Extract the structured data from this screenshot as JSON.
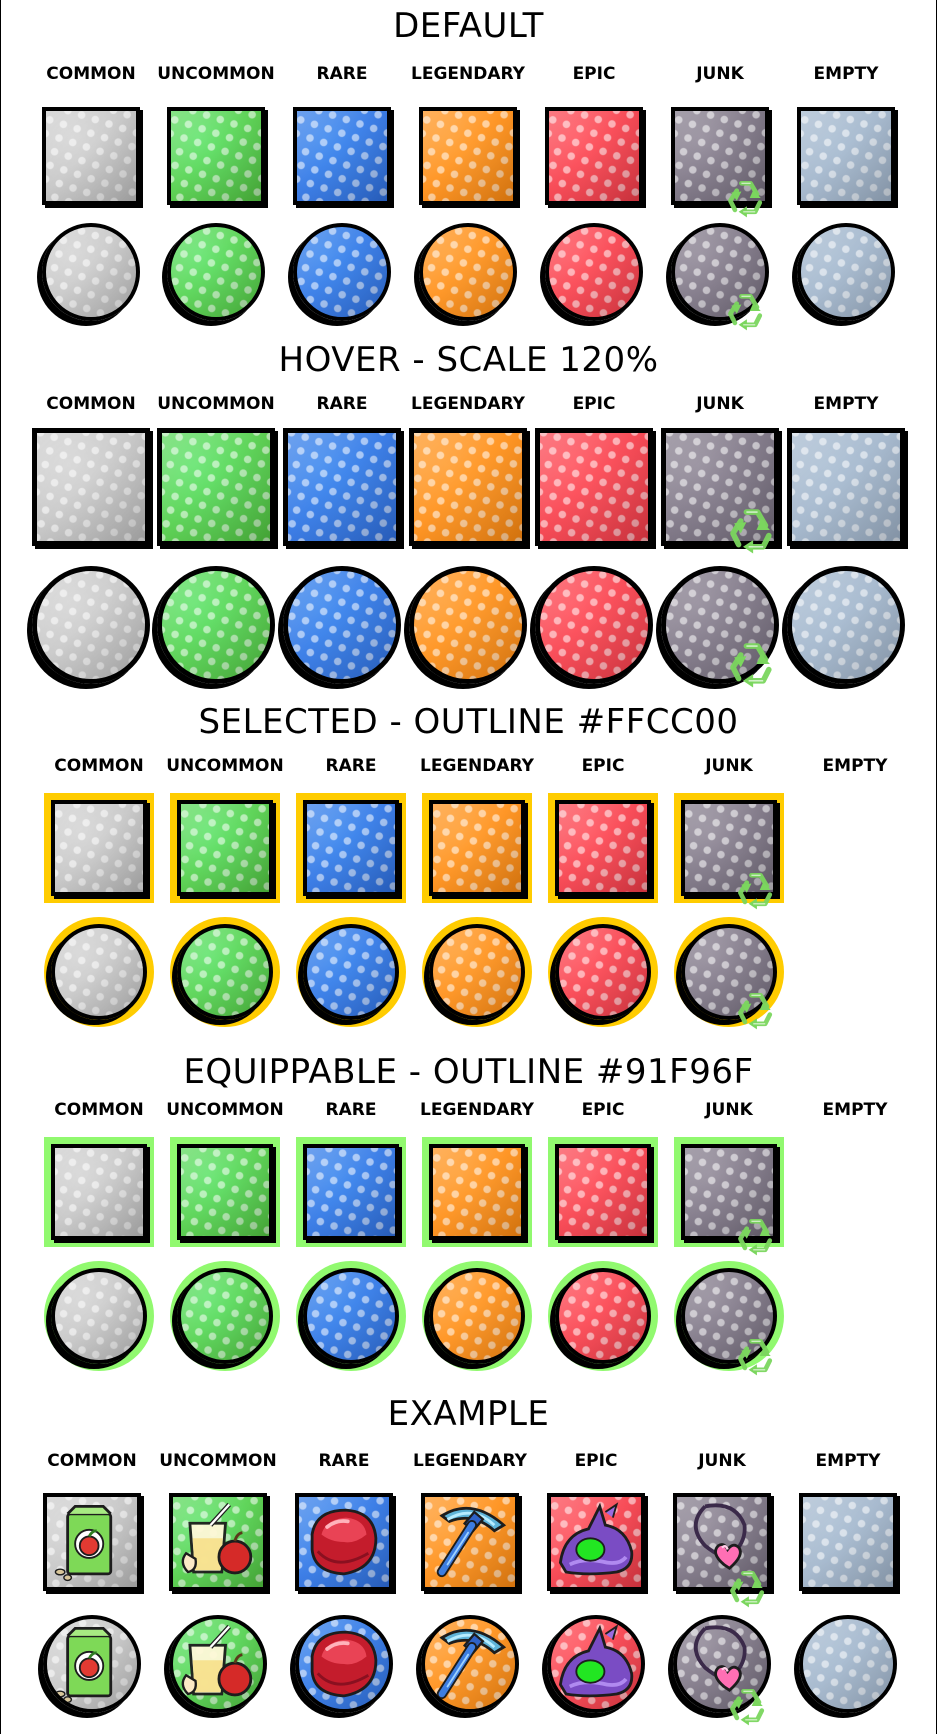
{
  "titles": {
    "default": "DEFAULT",
    "hover": "HOVER - SCALE 120%",
    "selected": "SELECTED -  OUTLINE #FFCC00",
    "equippable": "EQUIPPABLE - OUTLINE #91F96F",
    "example": "EXAMPLE"
  },
  "rarities": [
    {
      "key": "common",
      "label": "COMMON",
      "color": "#d4d4d4",
      "edge": "#bdbdbd"
    },
    {
      "key": "uncommon",
      "label": "UNCOMMON",
      "color": "#5fe36a",
      "edge": "#52c53f"
    },
    {
      "key": "rare",
      "label": "RARE",
      "color": "#3a86ee",
      "edge": "#2f6fe0"
    },
    {
      "key": "legendary",
      "label": "LEGENDARY",
      "color": "#ff9a2a",
      "edge": "#ff8a10"
    },
    {
      "key": "epic",
      "label": "EPIC",
      "color": "#ff4f5a",
      "edge": "#f23b48"
    },
    {
      "key": "junk",
      "label": "JUNK",
      "color": "#8f8796",
      "edge": "#726a7a"
    },
    {
      "key": "empty",
      "label": "EMPTY",
      "color": "#a9bdd2",
      "edge": "#9fb2c8"
    }
  ],
  "colors": {
    "selected_outline": "#FFCC00",
    "equippable_outline": "#91F96F",
    "recycle": "#7bd65e"
  },
  "icons": {
    "junk_badge": "recycle-icon",
    "example_items": [
      "seed-packet-icon",
      "apple-juice-icon",
      "red-gem-icon",
      "pickaxe-icon",
      "purple-slug-icon",
      "heart-necklace-icon",
      ""
    ]
  }
}
